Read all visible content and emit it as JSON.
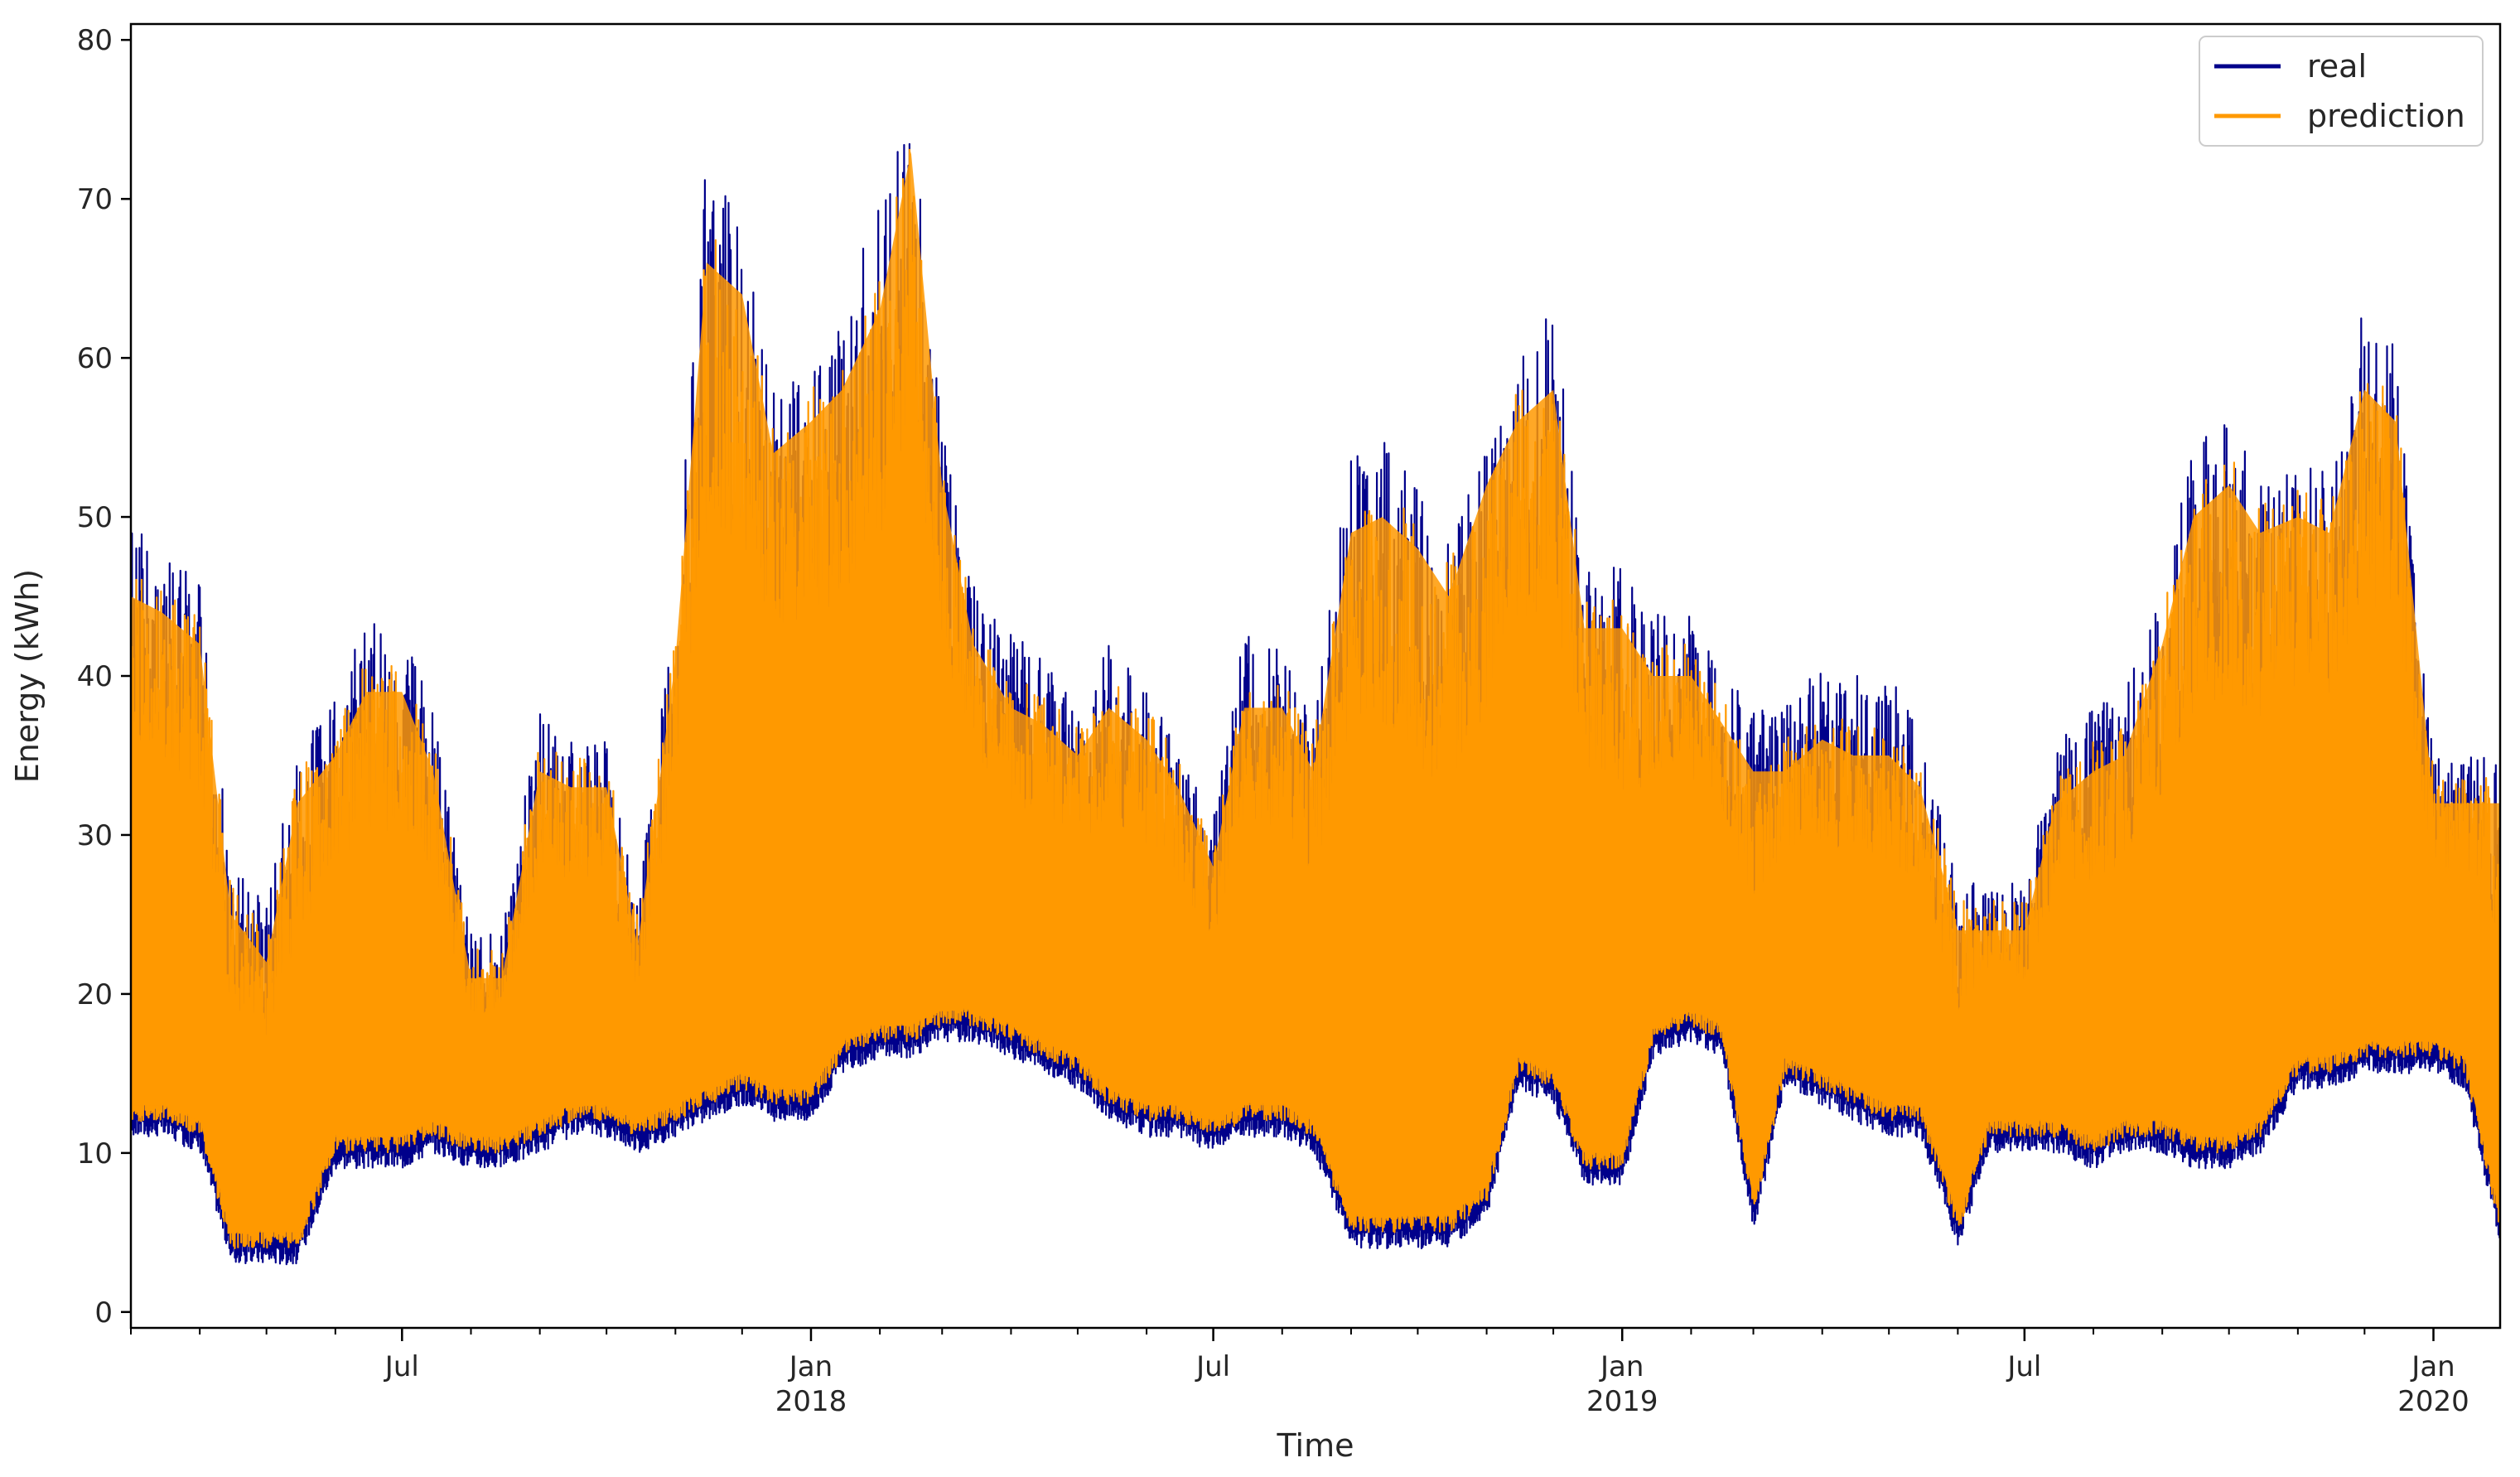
{
  "chart_data": {
    "type": "line",
    "title": "",
    "xlabel": "Time",
    "ylabel": "Energy (kWh)",
    "x_range": [
      "2017-03-01",
      "2020-01-31"
    ],
    "ylim": [
      -1,
      81
    ],
    "yticks": [
      0,
      10,
      20,
      30,
      40,
      50,
      60,
      70,
      80
    ],
    "xticks": [
      {
        "date": "2017-07-01",
        "label": "Jul",
        "sublabel": ""
      },
      {
        "date": "2018-01-01",
        "label": "Jan",
        "sublabel": "2018"
      },
      {
        "date": "2018-07-01",
        "label": "Jul",
        "sublabel": ""
      },
      {
        "date": "2019-01-01",
        "label": "Jan",
        "sublabel": "2019"
      },
      {
        "date": "2019-07-01",
        "label": "Jul",
        "sublabel": ""
      },
      {
        "date": "2020-01-01",
        "label": "Jan",
        "sublabel": "2020"
      }
    ],
    "grid": false,
    "legend": "top-right",
    "series": [
      {
        "name": "real",
        "color": "#00008b",
        "x": [
          "2017-03-01",
          "2017-03-15",
          "2017-04-01",
          "2017-04-15",
          "2017-05-01",
          "2017-05-15",
          "2017-06-01",
          "2017-06-15",
          "2017-07-01",
          "2017-07-15",
          "2017-08-01",
          "2017-08-15",
          "2017-09-01",
          "2017-09-15",
          "2017-10-01",
          "2017-10-15",
          "2017-11-01",
          "2017-11-15",
          "2017-12-01",
          "2017-12-15",
          "2018-01-01",
          "2018-01-15",
          "2018-02-01",
          "2018-02-15",
          "2018-03-01",
          "2018-03-15",
          "2018-04-01",
          "2018-04-15",
          "2018-05-01",
          "2018-05-15",
          "2018-06-01",
          "2018-06-15",
          "2018-07-01",
          "2018-07-15",
          "2018-08-01",
          "2018-08-15",
          "2018-09-01",
          "2018-09-15",
          "2018-10-01",
          "2018-10-15",
          "2018-11-01",
          "2018-11-15",
          "2018-12-01",
          "2018-12-15",
          "2019-01-01",
          "2019-01-15",
          "2019-02-01",
          "2019-02-15",
          "2019-03-01",
          "2019-03-15",
          "2019-04-01",
          "2019-04-15",
          "2019-05-01",
          "2019-05-15",
          "2019-06-01",
          "2019-06-15",
          "2019-07-01",
          "2019-07-15",
          "2019-08-01",
          "2019-08-15",
          "2019-09-01",
          "2019-09-15",
          "2019-10-01",
          "2019-10-15",
          "2019-11-01",
          "2019-11-15",
          "2019-12-01",
          "2019-12-15",
          "2020-01-01",
          "2020-01-15",
          "2020-01-31"
        ],
        "min": [
          11,
          11,
          10,
          3,
          3,
          3,
          9,
          9,
          9,
          10,
          9,
          9,
          10,
          11,
          11,
          10,
          11,
          12,
          13,
          12,
          12,
          15,
          16,
          16,
          17,
          17,
          16,
          15,
          14,
          12,
          11,
          11,
          10,
          11,
          11,
          10,
          4,
          4,
          4,
          4,
          6,
          14,
          13,
          8,
          8,
          16,
          17,
          16,
          5,
          14,
          13,
          12,
          11,
          11,
          4,
          10,
          10,
          10,
          9,
          10,
          10,
          9,
          9,
          10,
          14,
          14,
          15,
          15,
          15,
          14,
          4
        ],
        "max": [
          50,
          48,
          46,
          28,
          26,
          35,
          39,
          44,
          43,
          38,
          24,
          24,
          38,
          36,
          36,
          26,
          45,
          73,
          68,
          58,
          60,
          62,
          71,
          77,
          56,
          46,
          43,
          41,
          38,
          42,
          40,
          36,
          31,
          43,
          42,
          38,
          54,
          55,
          52,
          49,
          56,
          60,
          64,
          47,
          47,
          44,
          44,
          41,
          38,
          38,
          41,
          40,
          40,
          37,
          27,
          27,
          27,
          36,
          38,
          39,
          46,
          55,
          56,
          53,
          54,
          53,
          64,
          61,
          35,
          35,
          35
        ]
      },
      {
        "name": "prediction",
        "color": "#ff9900",
        "x": [
          "2017-03-01",
          "2017-03-15",
          "2017-04-01",
          "2017-04-15",
          "2017-05-01",
          "2017-05-15",
          "2017-06-01",
          "2017-06-15",
          "2017-07-01",
          "2017-07-15",
          "2017-08-01",
          "2017-08-15",
          "2017-09-01",
          "2017-09-15",
          "2017-10-01",
          "2017-10-15",
          "2017-11-01",
          "2017-11-15",
          "2017-12-01",
          "2017-12-15",
          "2018-01-01",
          "2018-01-15",
          "2018-02-01",
          "2018-02-15",
          "2018-03-01",
          "2018-03-15",
          "2018-04-01",
          "2018-04-15",
          "2018-05-01",
          "2018-05-15",
          "2018-06-01",
          "2018-06-15",
          "2018-07-01",
          "2018-07-15",
          "2018-08-01",
          "2018-08-15",
          "2018-09-01",
          "2018-09-15",
          "2018-10-01",
          "2018-10-15",
          "2018-11-01",
          "2018-11-15",
          "2018-12-01",
          "2018-12-15",
          "2019-01-01",
          "2019-01-15",
          "2019-02-01",
          "2019-02-15",
          "2019-03-01",
          "2019-03-15",
          "2019-04-01",
          "2019-04-15",
          "2019-05-01",
          "2019-05-15",
          "2019-06-01",
          "2019-06-15",
          "2019-07-01",
          "2019-07-15",
          "2019-08-01",
          "2019-08-15",
          "2019-09-01",
          "2019-09-15",
          "2019-10-01",
          "2019-10-15",
          "2019-11-01",
          "2019-11-15",
          "2019-12-01",
          "2019-12-15",
          "2020-01-01",
          "2020-01-15",
          "2020-01-31"
        ],
        "min": [
          12,
          12,
          11,
          4,
          4,
          4,
          10,
          10,
          10,
          11,
          10,
          10,
          11,
          12,
          12,
          11,
          12,
          13,
          14,
          13,
          13,
          16,
          17,
          17,
          18,
          18,
          17,
          16,
          15,
          13,
          12,
          12,
          11,
          12,
          12,
          11,
          5,
          5,
          5,
          5,
          7,
          15,
          14,
          9,
          9,
          17,
          18,
          17,
          6,
          15,
          14,
          13,
          12,
          12,
          5,
          11,
          11,
          11,
          10,
          11,
          11,
          10,
          10,
          11,
          15,
          15,
          16,
          16,
          16,
          15,
          5
        ],
        "max": [
          47,
          46,
          44,
          27,
          24,
          34,
          37,
          41,
          41,
          36,
          23,
          23,
          36,
          35,
          35,
          25,
          43,
          68,
          66,
          56,
          58,
          60,
          65,
          75,
          54,
          44,
          40,
          39,
          37,
          40,
          38,
          35,
          30,
          40,
          40,
          36,
          51,
          52,
          50,
          47,
          54,
          58,
          60,
          45,
          45,
          42,
          42,
          39,
          36,
          36,
          38,
          37,
          37,
          35,
          26,
          26,
          26,
          34,
          36,
          37,
          44,
          52,
          54,
          51,
          52,
          51,
          60,
          58,
          34,
          34,
          34
        ]
      }
    ]
  }
}
